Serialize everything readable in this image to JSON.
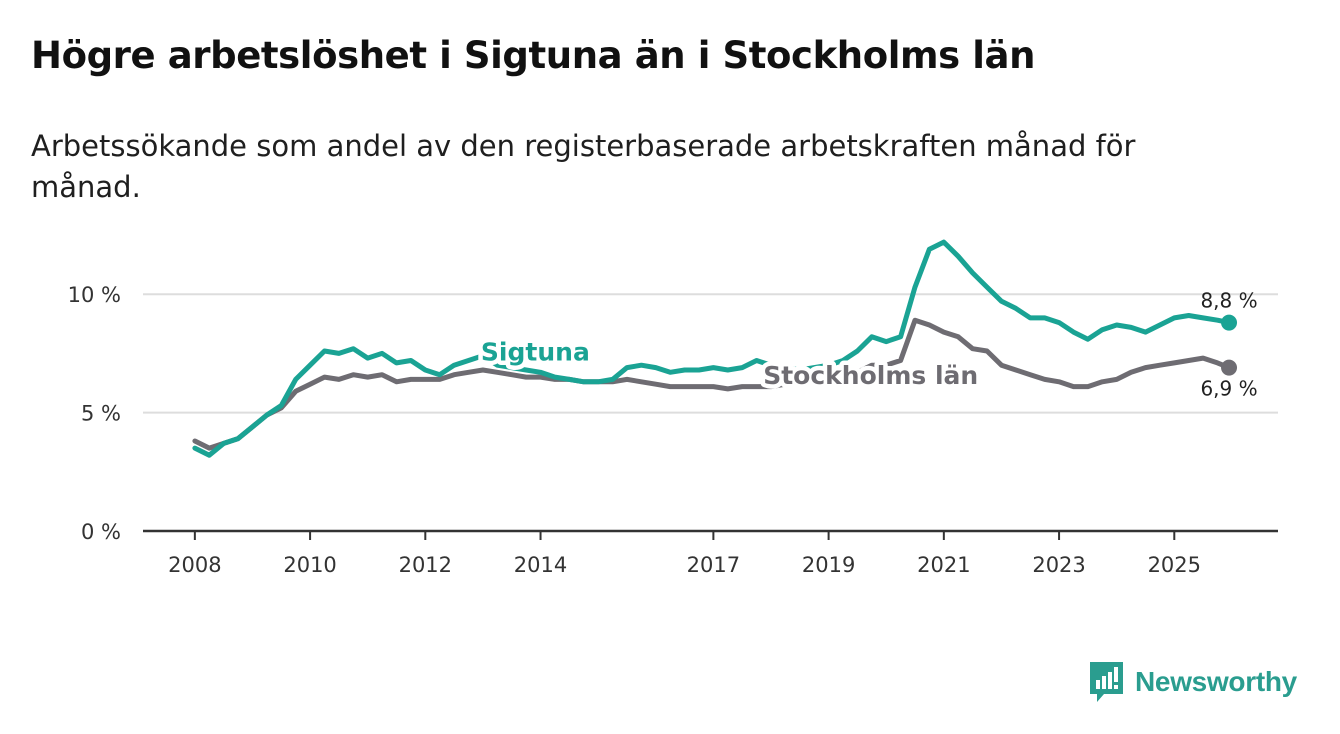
{
  "title": "Högre arbetslöshet i Sigtuna än i Stockholms län",
  "subtitle": "Arbetssökande som andel av den registerbaserade arbetskraften månad för månad.",
  "brand": "Newsworthy",
  "colors": {
    "sigtuna": "#1aa394",
    "stockholm": "#6e6c72",
    "axis": "#333333",
    "grid": "#dddddd",
    "brand": "#2a9d8f"
  },
  "chart_data": {
    "type": "line",
    "x_ticks": [
      2008,
      2010,
      2012,
      2014,
      2017,
      2019,
      2021,
      2023,
      2025
    ],
    "xlim": [
      2007.1,
      2026.8
    ],
    "y_ticks": [
      0,
      5,
      10
    ],
    "y_tick_labels": [
      "0 %",
      "5 %",
      "10 %"
    ],
    "ylim": [
      0,
      12.5
    ],
    "series": [
      {
        "name": "Sigtuna",
        "label": "Sigtuna",
        "end_label": "8,8 %",
        "points": [
          [
            2008.0,
            3.5
          ],
          [
            2008.25,
            3.2
          ],
          [
            2008.5,
            3.7
          ],
          [
            2008.75,
            3.9
          ],
          [
            2009.0,
            4.4
          ],
          [
            2009.25,
            4.9
          ],
          [
            2009.5,
            5.3
          ],
          [
            2009.75,
            6.4
          ],
          [
            2010.0,
            7.0
          ],
          [
            2010.25,
            7.6
          ],
          [
            2010.5,
            7.5
          ],
          [
            2010.75,
            7.7
          ],
          [
            2011.0,
            7.3
          ],
          [
            2011.25,
            7.5
          ],
          [
            2011.5,
            7.1
          ],
          [
            2011.75,
            7.2
          ],
          [
            2012.0,
            6.8
          ],
          [
            2012.25,
            6.6
          ],
          [
            2012.5,
            7.0
          ],
          [
            2012.75,
            7.2
          ],
          [
            2013.0,
            7.4
          ],
          [
            2013.25,
            7.0
          ],
          [
            2013.5,
            6.9
          ],
          [
            2013.75,
            6.8
          ],
          [
            2014.0,
            6.7
          ],
          [
            2014.25,
            6.5
          ],
          [
            2014.5,
            6.4
          ],
          [
            2014.75,
            6.3
          ],
          [
            2015.0,
            6.3
          ],
          [
            2015.25,
            6.4
          ],
          [
            2015.5,
            6.9
          ],
          [
            2015.75,
            7.0
          ],
          [
            2016.0,
            6.9
          ],
          [
            2016.25,
            6.7
          ],
          [
            2016.5,
            6.8
          ],
          [
            2016.75,
            6.8
          ],
          [
            2017.0,
            6.9
          ],
          [
            2017.25,
            6.8
          ],
          [
            2017.5,
            6.9
          ],
          [
            2017.75,
            7.2
          ],
          [
            2018.0,
            7.0
          ],
          [
            2018.25,
            6.9
          ],
          [
            2018.5,
            6.8
          ],
          [
            2018.75,
            6.9
          ],
          [
            2019.0,
            7.0
          ],
          [
            2019.25,
            7.2
          ],
          [
            2019.5,
            7.6
          ],
          [
            2019.75,
            8.2
          ],
          [
            2020.0,
            8.0
          ],
          [
            2020.25,
            8.2
          ],
          [
            2020.5,
            10.3
          ],
          [
            2020.75,
            11.9
          ],
          [
            2021.0,
            12.2
          ],
          [
            2021.25,
            11.6
          ],
          [
            2021.5,
            10.9
          ],
          [
            2021.75,
            10.3
          ],
          [
            2022.0,
            9.7
          ],
          [
            2022.25,
            9.4
          ],
          [
            2022.5,
            9.0
          ],
          [
            2022.75,
            9.0
          ],
          [
            2023.0,
            8.8
          ],
          [
            2023.25,
            8.4
          ],
          [
            2023.5,
            8.1
          ],
          [
            2023.75,
            8.5
          ],
          [
            2024.0,
            8.7
          ],
          [
            2024.25,
            8.6
          ],
          [
            2024.5,
            8.4
          ],
          [
            2024.75,
            8.7
          ],
          [
            2025.0,
            9.0
          ],
          [
            2025.25,
            9.1
          ],
          [
            2025.5,
            9.0
          ],
          [
            2025.75,
            8.9
          ],
          [
            2025.95,
            8.8
          ]
        ]
      },
      {
        "name": "Stockholms län",
        "label": "Stockholms län",
        "end_label": "6,9 %",
        "points": [
          [
            2008.0,
            3.8
          ],
          [
            2008.25,
            3.5
          ],
          [
            2008.5,
            3.7
          ],
          [
            2008.75,
            3.9
          ],
          [
            2009.0,
            4.4
          ],
          [
            2009.25,
            4.9
          ],
          [
            2009.5,
            5.2
          ],
          [
            2009.75,
            5.9
          ],
          [
            2010.0,
            6.2
          ],
          [
            2010.25,
            6.5
          ],
          [
            2010.5,
            6.4
          ],
          [
            2010.75,
            6.6
          ],
          [
            2011.0,
            6.5
          ],
          [
            2011.25,
            6.6
          ],
          [
            2011.5,
            6.3
          ],
          [
            2011.75,
            6.4
          ],
          [
            2012.0,
            6.4
          ],
          [
            2012.25,
            6.4
          ],
          [
            2012.5,
            6.6
          ],
          [
            2012.75,
            6.7
          ],
          [
            2013.0,
            6.8
          ],
          [
            2013.25,
            6.7
          ],
          [
            2013.5,
            6.6
          ],
          [
            2013.75,
            6.5
          ],
          [
            2014.0,
            6.5
          ],
          [
            2014.25,
            6.4
          ],
          [
            2014.5,
            6.4
          ],
          [
            2014.75,
            6.3
          ],
          [
            2015.0,
            6.3
          ],
          [
            2015.25,
            6.3
          ],
          [
            2015.5,
            6.4
          ],
          [
            2015.75,
            6.3
          ],
          [
            2016.0,
            6.2
          ],
          [
            2016.25,
            6.1
          ],
          [
            2016.5,
            6.1
          ],
          [
            2016.75,
            6.1
          ],
          [
            2017.0,
            6.1
          ],
          [
            2017.25,
            6.0
          ],
          [
            2017.5,
            6.1
          ],
          [
            2017.75,
            6.1
          ],
          [
            2018.0,
            6.1
          ],
          [
            2018.25,
            6.2
          ],
          [
            2018.5,
            6.3
          ],
          [
            2018.75,
            6.4
          ],
          [
            2019.0,
            6.5
          ],
          [
            2019.25,
            6.6
          ],
          [
            2019.5,
            6.7
          ],
          [
            2019.75,
            7.0
          ],
          [
            2020.0,
            7.0
          ],
          [
            2020.25,
            7.2
          ],
          [
            2020.5,
            8.9
          ],
          [
            2020.75,
            8.7
          ],
          [
            2021.0,
            8.4
          ],
          [
            2021.25,
            8.2
          ],
          [
            2021.5,
            7.7
          ],
          [
            2021.75,
            7.6
          ],
          [
            2022.0,
            7.0
          ],
          [
            2022.25,
            6.8
          ],
          [
            2022.5,
            6.6
          ],
          [
            2022.75,
            6.4
          ],
          [
            2023.0,
            6.3
          ],
          [
            2023.25,
            6.1
          ],
          [
            2023.5,
            6.1
          ],
          [
            2023.75,
            6.3
          ],
          [
            2024.0,
            6.4
          ],
          [
            2024.25,
            6.7
          ],
          [
            2024.5,
            6.9
          ],
          [
            2024.75,
            7.0
          ],
          [
            2025.0,
            7.1
          ],
          [
            2025.25,
            7.2
          ],
          [
            2025.5,
            7.3
          ],
          [
            2025.75,
            7.1
          ],
          [
            2025.95,
            6.9
          ]
        ]
      }
    ]
  }
}
